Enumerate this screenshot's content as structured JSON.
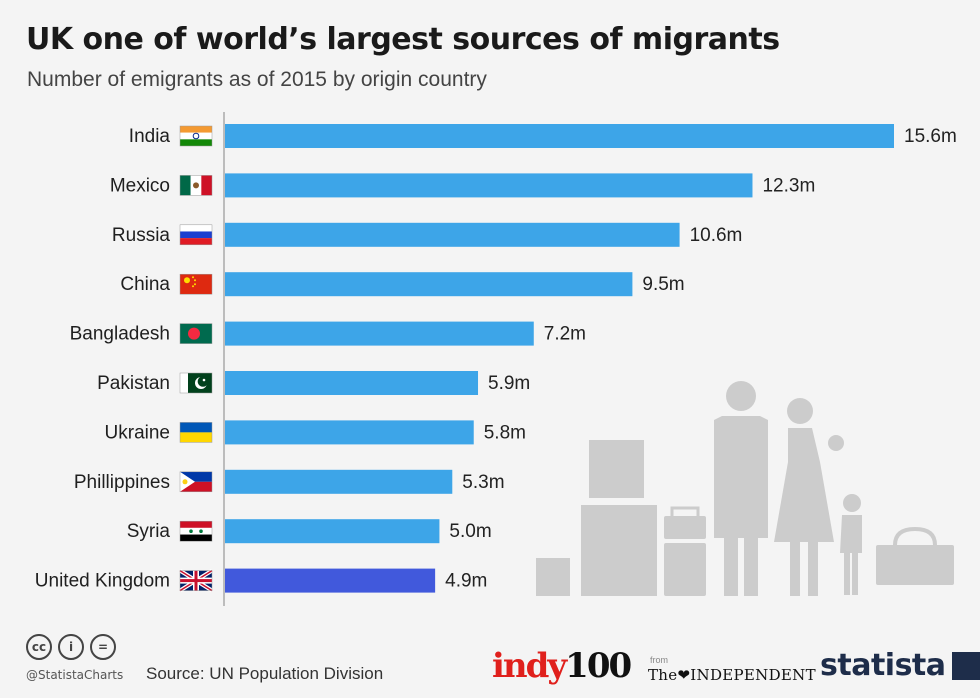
{
  "header": {
    "title": "UK one of world’s largest sources of migrants",
    "subtitle": "Number of emigrants as of 2015 by origin country"
  },
  "colors": {
    "bar": "#3da5e8",
    "highlight_bar": "#4159dc",
    "axis": "#aaaaaa",
    "illustration": "#cccccc"
  },
  "chart_data": {
    "type": "bar",
    "orientation": "horizontal",
    "title": "UK one of world’s largest sources of migrants",
    "subtitle": "Number of emigrants as of 2015 by origin country",
    "xlabel": "",
    "ylabel": "",
    "unit": "m",
    "xlim": [
      0,
      15.6
    ],
    "grid": false,
    "categories": [
      "India",
      "Mexico",
      "Russia",
      "China",
      "Bangladesh",
      "Pakistan",
      "Ukraine",
      "Phillippines",
      "Syria",
      "United Kingdom"
    ],
    "values": [
      15.6,
      12.3,
      10.6,
      9.5,
      7.2,
      5.9,
      5.8,
      5.3,
      5.0,
      4.9
    ],
    "value_labels": [
      "15.6m",
      "12.3m",
      "10.6m",
      "9.5m",
      "7.2m",
      "5.9m",
      "5.8m",
      "5.3m",
      "5.0m",
      "4.9m"
    ],
    "flags": [
      "india-flag-icon",
      "mexico-flag-icon",
      "russia-flag-icon",
      "china-flag-icon",
      "bangladesh-flag-icon",
      "pakistan-flag-icon",
      "ukraine-flag-icon",
      "philippines-flag-icon",
      "syria-flag-icon",
      "uk-flag-icon"
    ],
    "highlight": "United Kingdom"
  },
  "footer": {
    "handle": "@StatistaCharts",
    "source": "Source: UN Population Division",
    "indy_brand": "indy",
    "indy_num": "100",
    "from_label": "from",
    "independent": "The❤INDEPENDENT",
    "statista": "statista",
    "cc_icons": [
      "cc",
      "i",
      "="
    ]
  }
}
